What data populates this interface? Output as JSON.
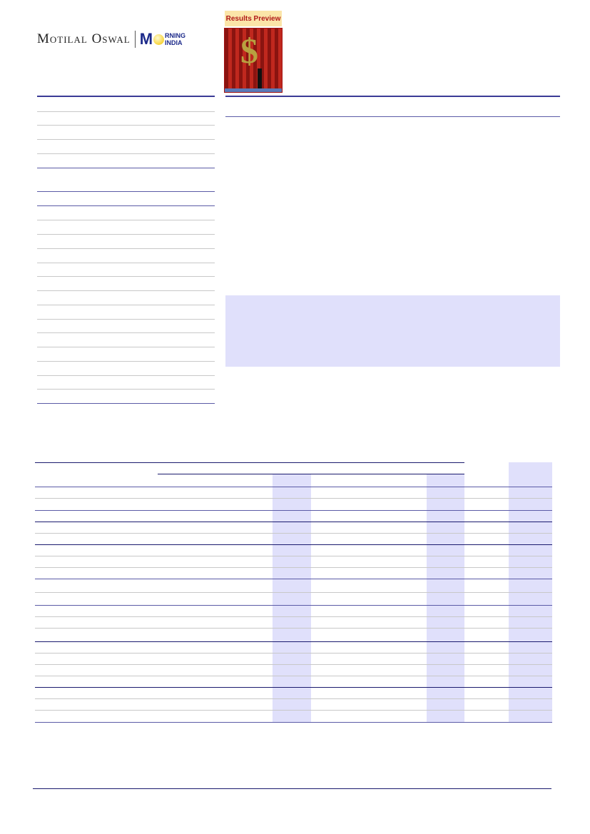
{
  "header": {
    "logo": {
      "brand": "Motilal Oswal",
      "product_m": "M",
      "product_top": "RNING",
      "product_bottom": "INDIA"
    },
    "badge": {
      "label": "Results Preview",
      "image": "dollar-sign-stage-image"
    }
  },
  "colors": {
    "rule": "#3b3b96",
    "shade": "#e0e0fb",
    "badge_bg": "#fbe5a8",
    "badge_text": "#b01818"
  }
}
